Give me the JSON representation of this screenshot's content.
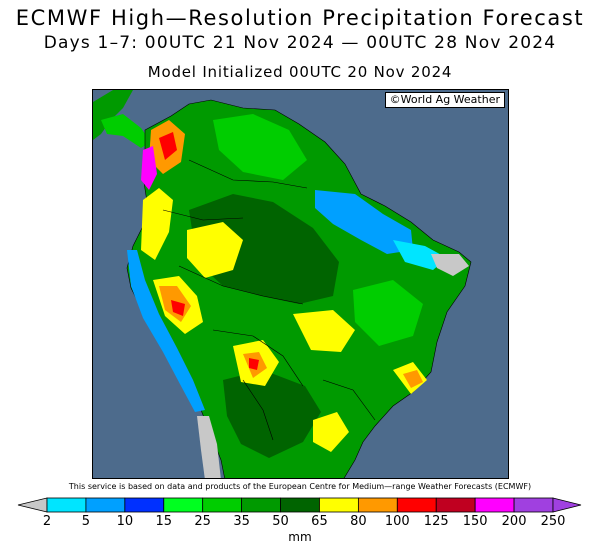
{
  "header": {
    "title": "ECMWF High—Resolution Precipitation Forecast",
    "period": "Days 1–7: 00UTC 21 Nov 2024 — 00UTC 28 Nov 2024",
    "initialized": "Model Initialized 00UTC 20 Nov 2024"
  },
  "map": {
    "credit": "©World Ag Weather",
    "ocean_color": "#4d6b8c",
    "land_no_precip_color": "#c8c8c8"
  },
  "footer": {
    "disclaimer": "This service is based on data and products of the European Centre for Medium—range Weather Forecasts (ECMWF)"
  },
  "legend": {
    "unit": "mm",
    "ticks": [
      "2",
      "5",
      "10",
      "15",
      "25",
      "35",
      "50",
      "65",
      "80",
      "100",
      "125",
      "150",
      "200",
      "250"
    ],
    "colors": [
      "#00e5ff",
      "#00a0ff",
      "#0030ff",
      "#00ff20",
      "#00cd00",
      "#009a00",
      "#006400",
      "#ffff00",
      "#ff9900",
      "#ff0000",
      "#c00020",
      "#ff00ff",
      "#a040e0"
    ],
    "below_color": "#c8c8c8",
    "above_color": "#a040e0"
  }
}
